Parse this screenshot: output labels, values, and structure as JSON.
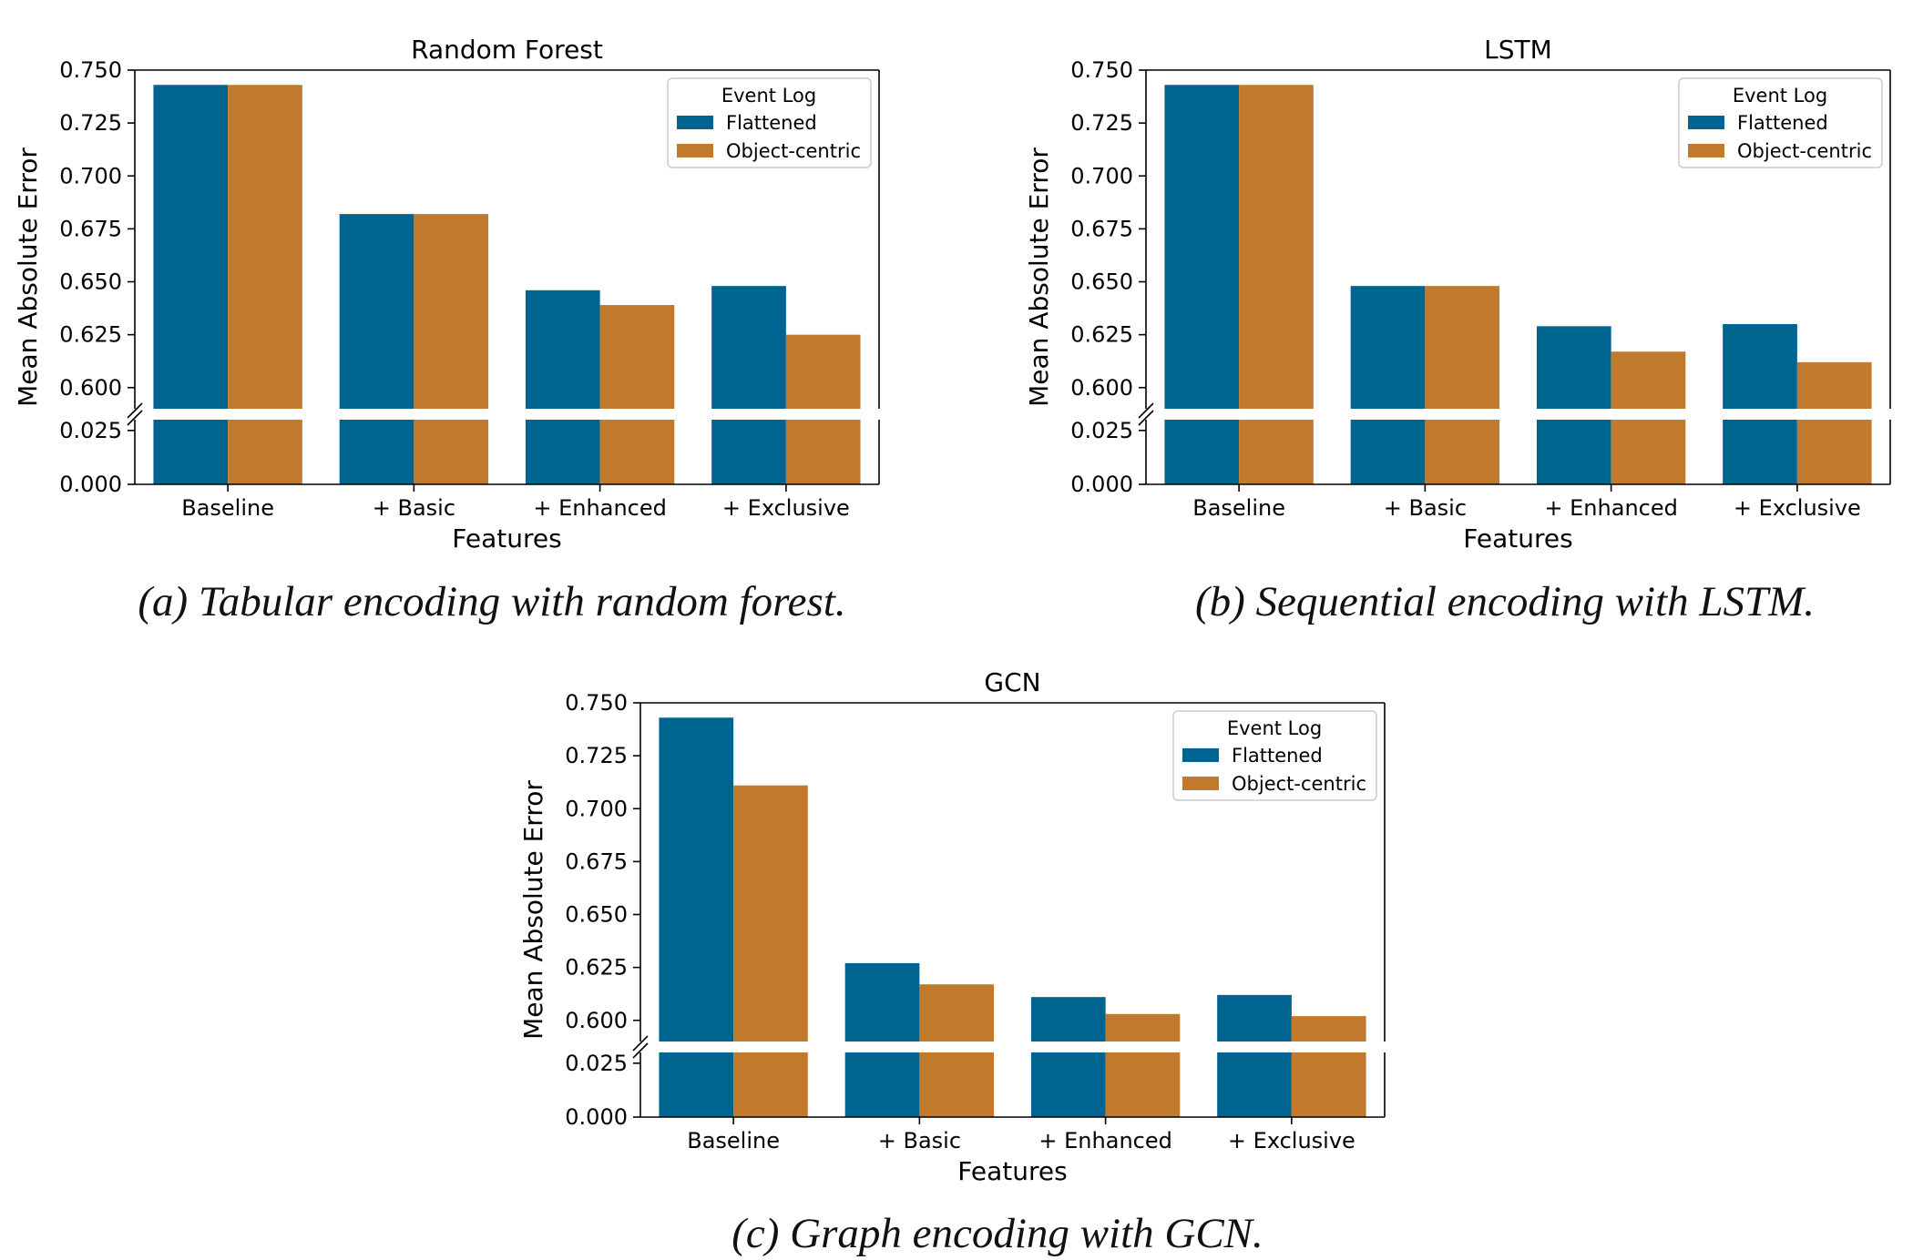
{
  "figure": {
    "captions": [
      "(a) Tabular encoding with random forest.",
      "(b) Sequential encoding with LSTM.",
      "(c) Graph encoding with GCN."
    ]
  },
  "colors": {
    "flattened": "#006490",
    "object_centric": "#C17A2C",
    "axis": "#000000"
  },
  "chart_data": [
    {
      "type": "bar",
      "title": "Random Forest",
      "xlabel": "Features",
      "ylabel": "Mean Absolute Error",
      "categories": [
        "Baseline",
        "+ Basic",
        "+ Enhanced",
        "+ Exclusive"
      ],
      "series": [
        {
          "name": "Flattened",
          "values": [
            0.743,
            0.682,
            0.646,
            0.648
          ]
        },
        {
          "name": "Object-centric",
          "values": [
            0.743,
            0.682,
            0.639,
            0.625
          ]
        }
      ],
      "legend": {
        "title": "Event Log",
        "placement": "top-right"
      },
      "broken_axis": {
        "upper_range": [
          0.59,
          0.75
        ],
        "lower_range": [
          0.0,
          0.03
        ],
        "upper_ticks": [
          "0.750",
          "0.725",
          "0.700",
          "0.675",
          "0.650",
          "0.625",
          "0.600"
        ],
        "lower_ticks": [
          "0.025",
          "0.000"
        ]
      }
    },
    {
      "type": "bar",
      "title": "LSTM",
      "xlabel": "Features",
      "ylabel": "Mean Absolute Error",
      "categories": [
        "Baseline",
        "+ Basic",
        "+ Enhanced",
        "+ Exclusive"
      ],
      "series": [
        {
          "name": "Flattened",
          "values": [
            0.743,
            0.648,
            0.629,
            0.63
          ]
        },
        {
          "name": "Object-centric",
          "values": [
            0.743,
            0.648,
            0.617,
            0.612
          ]
        }
      ],
      "legend": {
        "title": "Event Log",
        "placement": "top-right"
      },
      "broken_axis": {
        "upper_range": [
          0.59,
          0.75
        ],
        "lower_range": [
          0.0,
          0.03
        ],
        "upper_ticks": [
          "0.750",
          "0.725",
          "0.700",
          "0.675",
          "0.650",
          "0.625",
          "0.600"
        ],
        "lower_ticks": [
          "0.025",
          "0.000"
        ]
      }
    },
    {
      "type": "bar",
      "title": "GCN",
      "xlabel": "Features",
      "ylabel": "Mean Absolute Error",
      "categories": [
        "Baseline",
        "+ Basic",
        "+ Enhanced",
        "+ Exclusive"
      ],
      "series": [
        {
          "name": "Flattened",
          "values": [
            0.743,
            0.627,
            0.611,
            0.612
          ]
        },
        {
          "name": "Object-centric",
          "values": [
            0.711,
            0.617,
            0.603,
            0.602
          ]
        }
      ],
      "legend": {
        "title": "Event Log",
        "placement": "top-right"
      },
      "broken_axis": {
        "upper_range": [
          0.59,
          0.75
        ],
        "lower_range": [
          0.0,
          0.03
        ],
        "upper_ticks": [
          "0.750",
          "0.725",
          "0.700",
          "0.675",
          "0.650",
          "0.625",
          "0.600"
        ],
        "lower_ticks": [
          "0.025",
          "0.000"
        ]
      }
    }
  ]
}
